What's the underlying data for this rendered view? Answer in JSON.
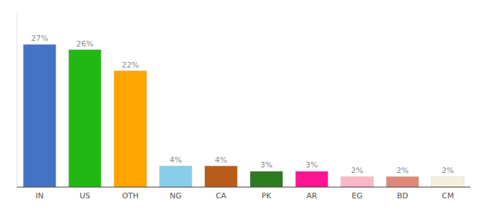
{
  "chart_data": {
    "type": "bar",
    "categories": [
      "IN",
      "US",
      "OTH",
      "NG",
      "CA",
      "PK",
      "AR",
      "EG",
      "BD",
      "CM"
    ],
    "values": [
      27,
      26,
      22,
      4,
      4,
      3,
      3,
      2,
      2,
      2
    ],
    "value_labels": [
      "27%",
      "26%",
      "22%",
      "4%",
      "4%",
      "3%",
      "3%",
      "2%",
      "2%",
      "2%"
    ],
    "colors": [
      "#4472c4",
      "#22b814",
      "#ffa500",
      "#87ceeb",
      "#b85c1a",
      "#2d7a1f",
      "#ff1493",
      "#ffb6c8",
      "#e08878",
      "#f5f0dc"
    ],
    "ylim": [
      0,
      33
    ],
    "data_labels": true,
    "tick_labels": "x",
    "grid": false
  }
}
